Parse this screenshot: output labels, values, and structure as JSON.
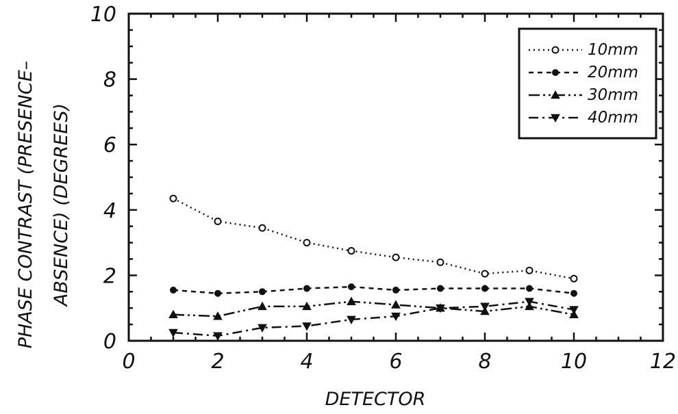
{
  "chart_data": {
    "type": "line",
    "title": "",
    "xlabel": "DETECTOR",
    "ylabel_lines": [
      "PHASE CONTRAST (PRESENCE–",
      "ABSENCE) (DEGREES)"
    ],
    "xlim": [
      0,
      12
    ],
    "ylim": [
      0,
      10
    ],
    "xticks": [
      0,
      2,
      4,
      6,
      8,
      10,
      12
    ],
    "yticks": [
      0,
      2,
      4,
      6,
      8,
      10
    ],
    "grid": false,
    "legend_position": "top-right",
    "x": [
      1,
      2,
      3,
      4,
      5,
      6,
      7,
      8,
      9,
      10
    ],
    "series": [
      {
        "name": "10mm",
        "marker": "circle-open",
        "dash": "2,5",
        "values": [
          4.35,
          3.65,
          3.45,
          3.0,
          2.75,
          2.55,
          2.4,
          2.05,
          2.15,
          1.9
        ]
      },
      {
        "name": "20mm",
        "marker": "circle-filled",
        "dash": "7,6",
        "values": [
          1.55,
          1.45,
          1.5,
          1.6,
          1.65,
          1.55,
          1.6,
          1.6,
          1.6,
          1.45
        ]
      },
      {
        "name": "30mm",
        "marker": "triangle-up",
        "dash": "16,5,3,5,3,5",
        "values": [
          0.8,
          0.75,
          1.05,
          1.05,
          1.2,
          1.1,
          1.0,
          0.9,
          1.05,
          0.8
        ]
      },
      {
        "name": "40mm",
        "marker": "triangle-down",
        "dash": "14,6,3,6",
        "values": [
          0.25,
          0.15,
          0.4,
          0.45,
          0.65,
          0.75,
          1.0,
          1.05,
          1.2,
          0.95
        ]
      }
    ]
  }
}
